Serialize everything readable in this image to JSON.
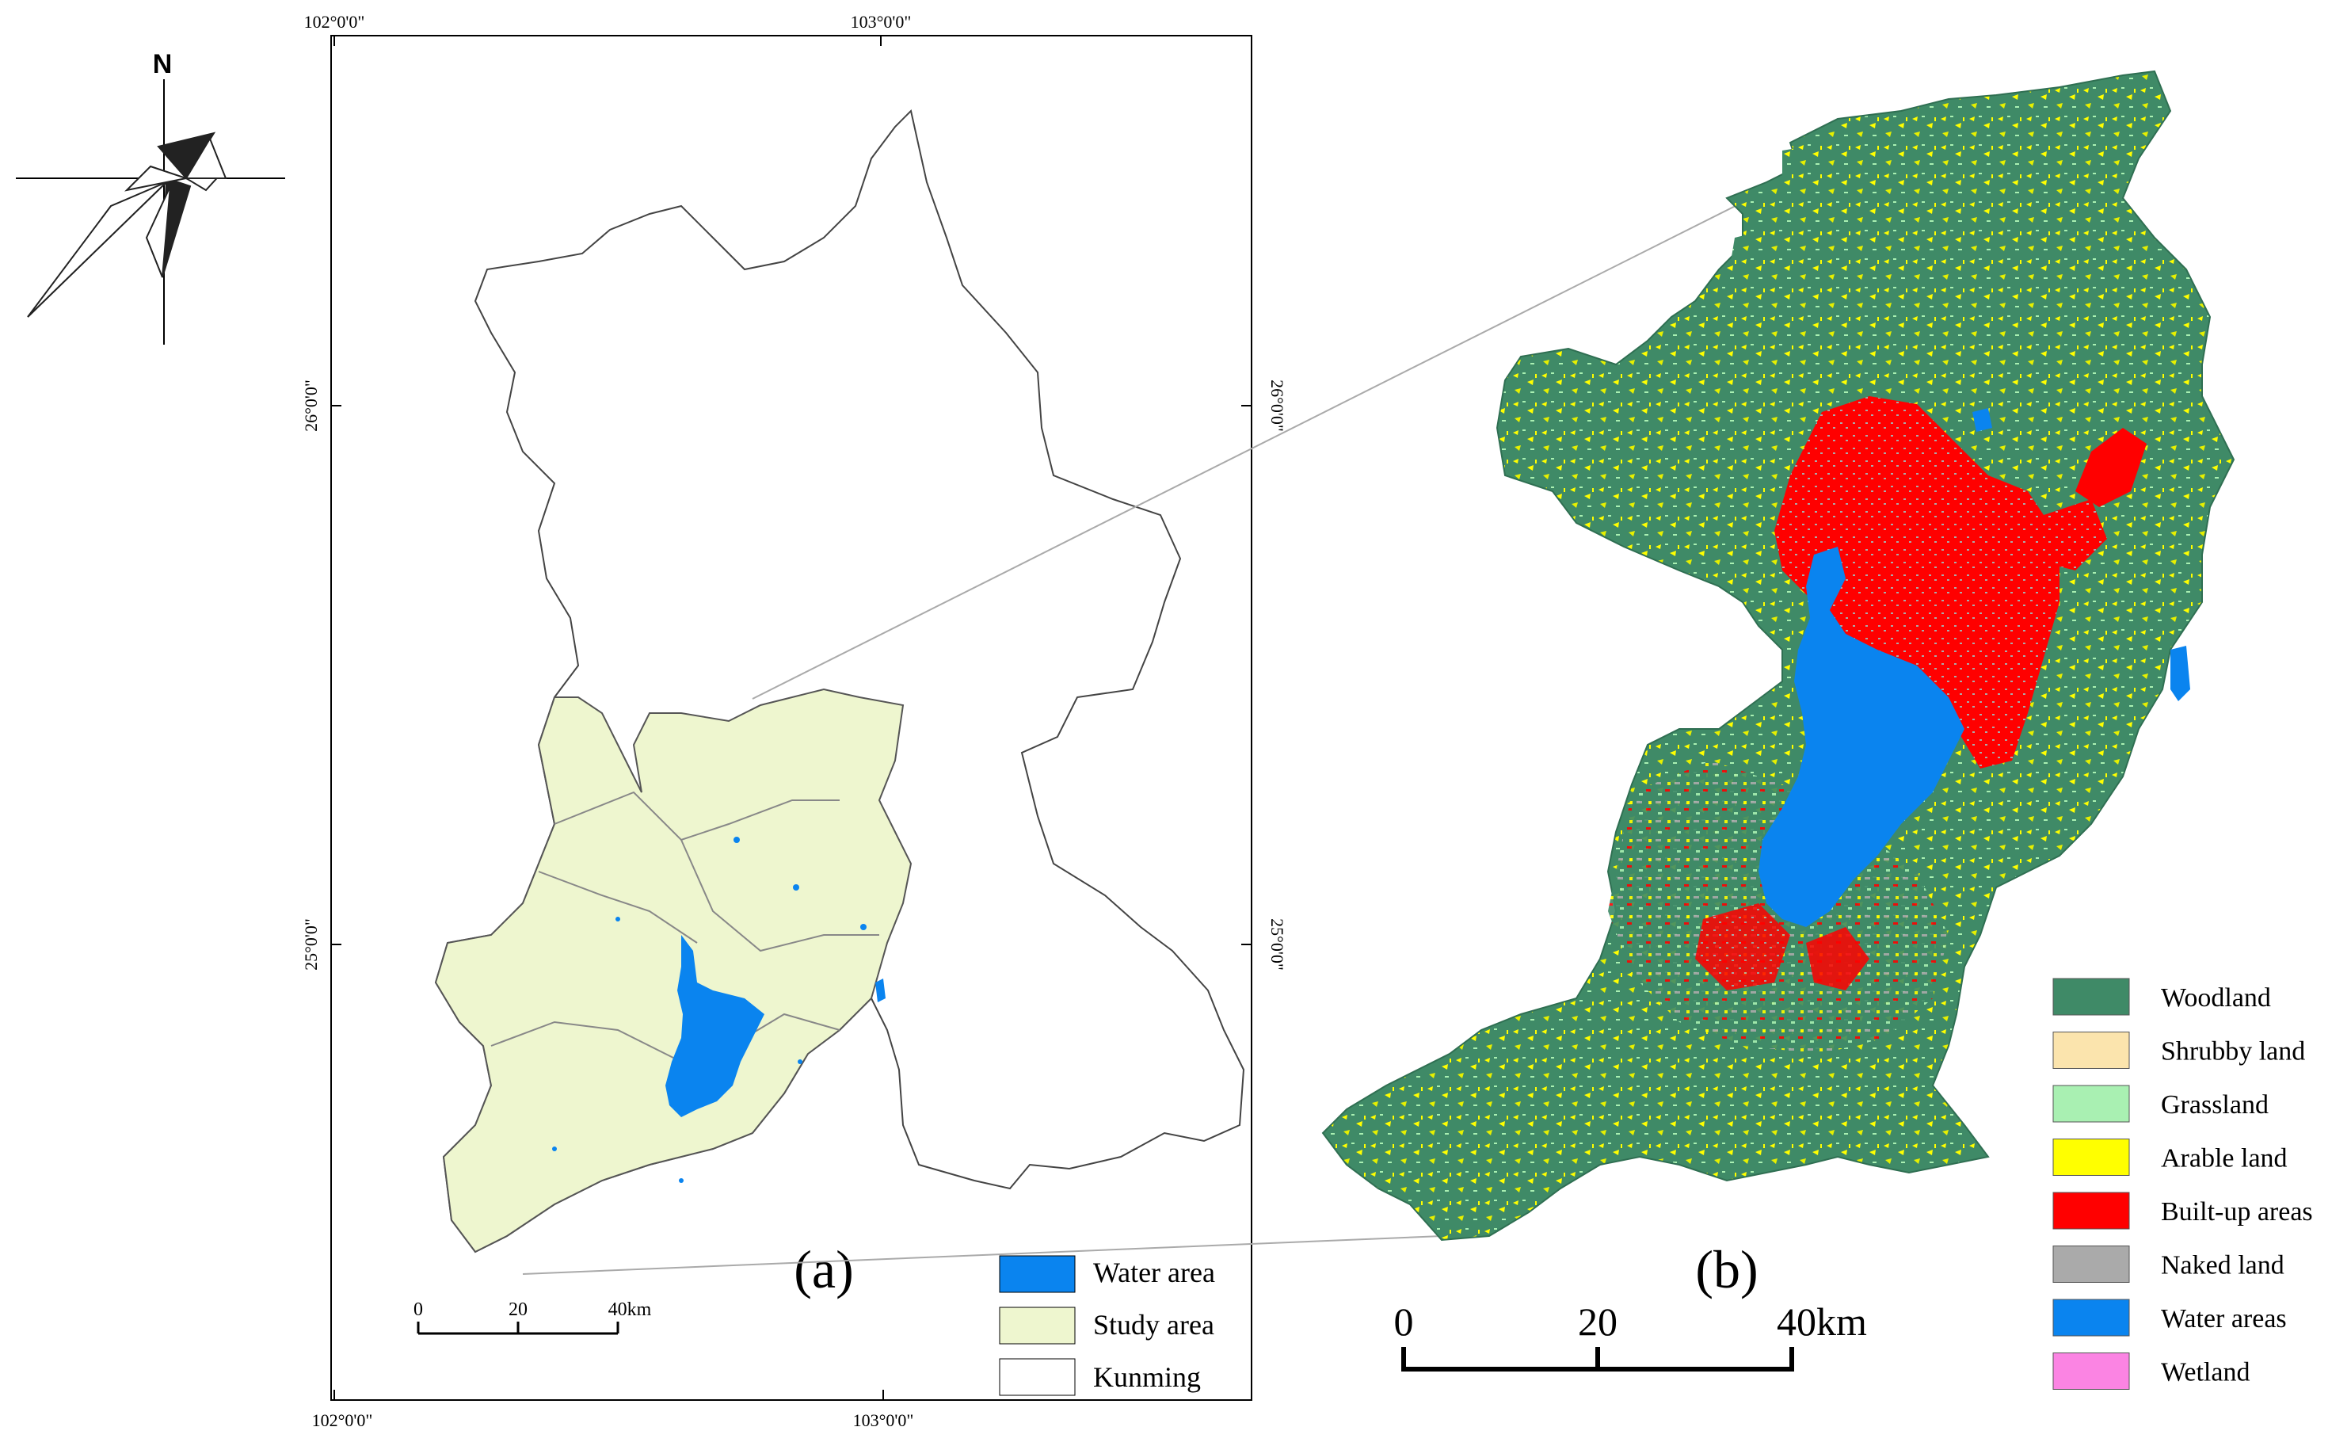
{
  "compass": {
    "north_label": "N",
    "icon": "north-arrow-icon"
  },
  "map_a": {
    "panel_label": "(a)",
    "graticule": {
      "top_lon": [
        "102°0'0\"",
        "103°0'0\""
      ],
      "bottom_lon": [
        "102°0'0\"",
        "103°0'0\""
      ],
      "left_lat": [
        "26°0'0\"",
        "25°0'0\""
      ],
      "right_lat": [
        "26°0'0\"",
        "25°0'0\""
      ]
    },
    "scale_bar": {
      "labels": [
        "0",
        "20",
        "40km"
      ]
    },
    "legend": [
      {
        "label": "Water area",
        "color": "#0a84ef"
      },
      {
        "label": "Study area",
        "color": "#eef6cf"
      },
      {
        "label": "Kunming",
        "color": "#ffffff"
      }
    ]
  },
  "map_b": {
    "panel_label": "(b)",
    "scale_bar": {
      "labels": [
        "0",
        "20",
        "40km"
      ]
    },
    "legend": [
      {
        "label": "Woodland",
        "color": "#3f8a67"
      },
      {
        "label": "Shrubby land",
        "color": "#fbe4ad"
      },
      {
        "label": "Grassland",
        "color": "#a9f0b2"
      },
      {
        "label": "Arable land",
        "color": "#ffff00"
      },
      {
        "label": "Built-up areas",
        "color": "#ff0000"
      },
      {
        "label": "Naked land",
        "color": "#aaaaaa"
      },
      {
        "label": "Water areas",
        "color": "#0a84ef"
      },
      {
        "label": "Wetland",
        "color": "#fb84e3"
      }
    ]
  }
}
